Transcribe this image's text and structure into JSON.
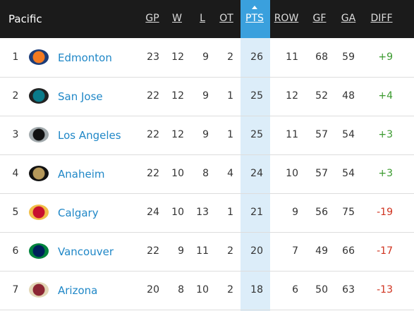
{
  "header": {
    "division": "Pacific",
    "columns": [
      "GP",
      "W",
      "L",
      "OT",
      "PTS",
      "ROW",
      "GF",
      "GA",
      "DIFF"
    ]
  },
  "rows": [
    {
      "rank": 1,
      "team": "Edmonton",
      "stats": [
        23,
        12,
        9,
        2,
        26,
        11,
        68,
        59
      ],
      "diff": "+9"
    },
    {
      "rank": 2,
      "team": "San Jose",
      "stats": [
        22,
        12,
        9,
        1,
        25,
        12,
        52,
        48
      ],
      "diff": "+4"
    },
    {
      "rank": 3,
      "team": "Los Angeles",
      "stats": [
        22,
        12,
        9,
        1,
        25,
        11,
        57,
        54
      ],
      "diff": "+3"
    },
    {
      "rank": 4,
      "team": "Anaheim",
      "stats": [
        22,
        10,
        8,
        4,
        24,
        10,
        57,
        54
      ],
      "diff": "+3"
    },
    {
      "rank": 5,
      "team": "Calgary",
      "stats": [
        24,
        10,
        13,
        1,
        21,
        9,
        56,
        75
      ],
      "diff": "-19"
    },
    {
      "rank": 6,
      "team": "Vancouver",
      "stats": [
        22,
        9,
        11,
        2,
        20,
        7,
        49,
        66
      ],
      "diff": "-17"
    },
    {
      "rank": 7,
      "team": "Arizona",
      "stats": [
        20,
        8,
        10,
        2,
        18,
        6,
        50,
        63
      ],
      "diff": "-13"
    }
  ]
}
